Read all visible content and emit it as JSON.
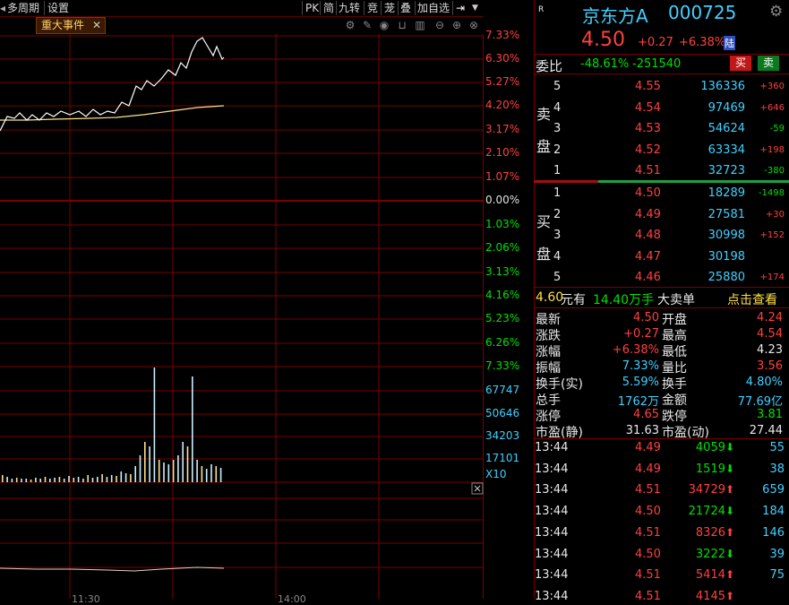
{
  "toolbar": {
    "left_items": [
      "多周期",
      "设置"
    ],
    "right_items": [
      "PK",
      "简",
      "九转",
      "竞",
      "茏",
      "叠",
      "加自选"
    ]
  },
  "event_tab": {
    "label": "重大事件",
    "close": "✕"
  },
  "y_axis_price": [
    "7.33%",
    "6.30%",
    "5.27%",
    "4.20%",
    "3.17%",
    "2.10%",
    "1.07%",
    "0.00%",
    "1.03%",
    "2.06%",
    "3.13%",
    "4.16%",
    "5.23%",
    "6.26%",
    "7.33%"
  ],
  "y_axis_volume": [
    "67747",
    "50646",
    "34203",
    "17101",
    "X10"
  ],
  "x_axis": [
    "11:30",
    "14:00"
  ],
  "stock": {
    "market_flag": "R",
    "name": "京东方A",
    "code": "000725",
    "price": "4.50",
    "change": "+0.27",
    "change_pct": "+6.38%",
    "badge": "陆"
  },
  "weibi": {
    "label": "委比",
    "pct": "-48.61%",
    "diff": "-251540",
    "buy_btn": "买",
    "sell_btn": "卖"
  },
  "sell_side_label": [
    "卖",
    "盘"
  ],
  "buy_side_label": [
    "买",
    "盘"
  ],
  "sell_orders": [
    {
      "level": "5",
      "price": "4.55",
      "vol": "136336",
      "chg": "+360"
    },
    {
      "level": "4",
      "price": "4.54",
      "vol": "97469",
      "chg": "+646"
    },
    {
      "level": "3",
      "price": "4.53",
      "vol": "54624",
      "chg": "-59"
    },
    {
      "level": "2",
      "price": "4.52",
      "vol": "63334",
      "chg": "+198"
    },
    {
      "level": "1",
      "price": "4.51",
      "vol": "32723",
      "chg": "-380"
    }
  ],
  "buy_orders": [
    {
      "level": "1",
      "price": "4.50",
      "vol": "18289",
      "chg": "-1498"
    },
    {
      "level": "2",
      "price": "4.49",
      "vol": "27581",
      "chg": "+30"
    },
    {
      "level": "3",
      "price": "4.48",
      "vol": "30998",
      "chg": "+152"
    },
    {
      "level": "4",
      "price": "4.47",
      "vol": "30198",
      "chg": ""
    },
    {
      "level": "5",
      "price": "4.46",
      "vol": "25880",
      "chg": "+174"
    }
  ],
  "big_order": {
    "price": "4.60",
    "unit": "元有",
    "amount": "14.40万手",
    "type": "大卖单",
    "link": "点击查看"
  },
  "stats": [
    {
      "l1": "最新",
      "v1": "4.50",
      "c1": "red",
      "l2": "开盘",
      "v2": "4.24",
      "c2": "red"
    },
    {
      "l1": "涨跌",
      "v1": "+0.27",
      "c1": "red",
      "l2": "最高",
      "v2": "4.54",
      "c2": "red"
    },
    {
      "l1": "涨幅",
      "v1": "+6.38%",
      "c1": "red",
      "l2": "最低",
      "v2": "4.23",
      "c2": "white"
    },
    {
      "l1": "振幅",
      "v1": "7.33%",
      "c1": "cyan",
      "l2": "量比",
      "v2": "3.56",
      "c2": "red"
    },
    {
      "l1": "换手(实)",
      "v1": "5.59%",
      "c1": "cyan",
      "l2": "换手",
      "v2": "4.80%",
      "c2": "cyan"
    },
    {
      "l1": "总手",
      "v1": "1762万",
      "c1": "cyan",
      "l2": "金额",
      "v2": "77.69亿",
      "c2": "cyan"
    },
    {
      "l1": "涨停",
      "v1": "4.65",
      "c1": "red",
      "l2": "跌停",
      "v2": "3.81",
      "c2": "green"
    },
    {
      "l1": "市盈(静)",
      "v1": "31.63",
      "c1": "white",
      "l2": "市盈(动)",
      "v2": "27.44",
      "c2": "white"
    }
  ],
  "ticks": [
    {
      "time": "13:44",
      "price": "4.49",
      "vol": "4059",
      "dir": "down",
      "num": "55"
    },
    {
      "time": "13:44",
      "price": "4.49",
      "vol": "1519",
      "dir": "down",
      "num": "38"
    },
    {
      "time": "13:44",
      "price": "4.51",
      "vol": "34729",
      "dir": "up",
      "num": "659"
    },
    {
      "time": "13:44",
      "price": "4.50",
      "vol": "21724",
      "dir": "down",
      "num": "184"
    },
    {
      "time": "13:44",
      "price": "4.51",
      "vol": "8326",
      "dir": "up",
      "num": "146"
    },
    {
      "time": "13:44",
      "price": "4.50",
      "vol": "3222",
      "dir": "down",
      "num": "39"
    },
    {
      "time": "13:44",
      "price": "4.51",
      "vol": "5414",
      "dir": "up",
      "num": "75"
    },
    {
      "time": "13:44",
      "price": "4.51",
      "vol": "4145",
      "dir": "up",
      "num": ""
    }
  ],
  "colors": {
    "up": "#ff4040",
    "down": "#00e000",
    "grid": "#7a0000",
    "price_line": "#ffffff",
    "avg_line": "#ffe08a",
    "name": "#40d0ff"
  }
}
